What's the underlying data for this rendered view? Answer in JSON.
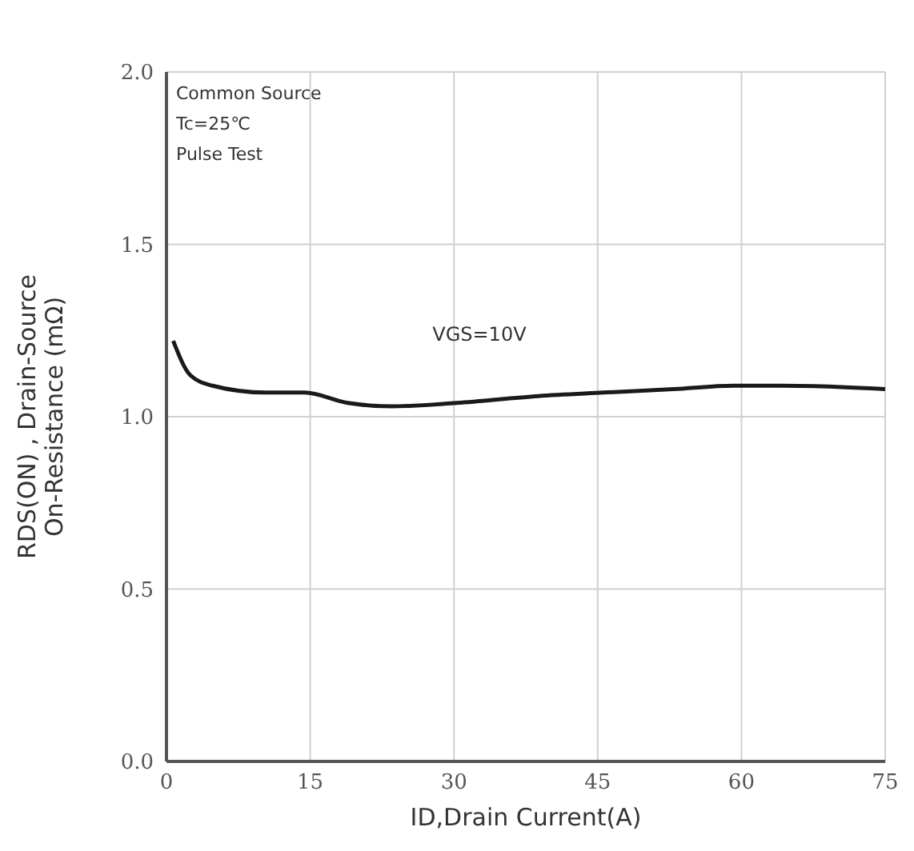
{
  "chart_data": {
    "type": "line",
    "xlabel": "ID,Drain Current(A)",
    "ylabel": "RDS(ON) , Drain-Source\nOn-Resistance (mΩ)",
    "annotations": [
      "Common Source",
      "Tc=25℃",
      "Pulse Test"
    ],
    "series": [
      {
        "name": "VGS=10V",
        "color": "#1a1a1a",
        "x": [
          0.7,
          2.5,
          4.8,
          10.4,
          14.4,
          18.9,
          23.5,
          30.3,
          38.8,
          45.6,
          52.9,
          59.2,
          64.3,
          75
        ],
        "values": [
          1.22,
          1.12,
          1.09,
          1.07,
          1.07,
          1.04,
          1.03,
          1.04,
          1.06,
          1.07,
          1.08,
          1.09,
          1.09,
          1.08
        ]
      }
    ],
    "xlim": [
      0,
      75
    ],
    "xticks": [
      0,
      15,
      30,
      45,
      60,
      75
    ],
    "ylim": [
      0,
      2
    ],
    "yticks": [
      {
        "value": 0,
        "label": "0.0"
      },
      {
        "value": 0.5,
        "label": "0.5"
      },
      {
        "value": 1,
        "label": "1.0"
      },
      {
        "value": 1.5,
        "label": "1.5"
      },
      {
        "value": 2,
        "label": "2.0"
      }
    ],
    "grid": true,
    "marker": "none",
    "line_style": "solid"
  }
}
